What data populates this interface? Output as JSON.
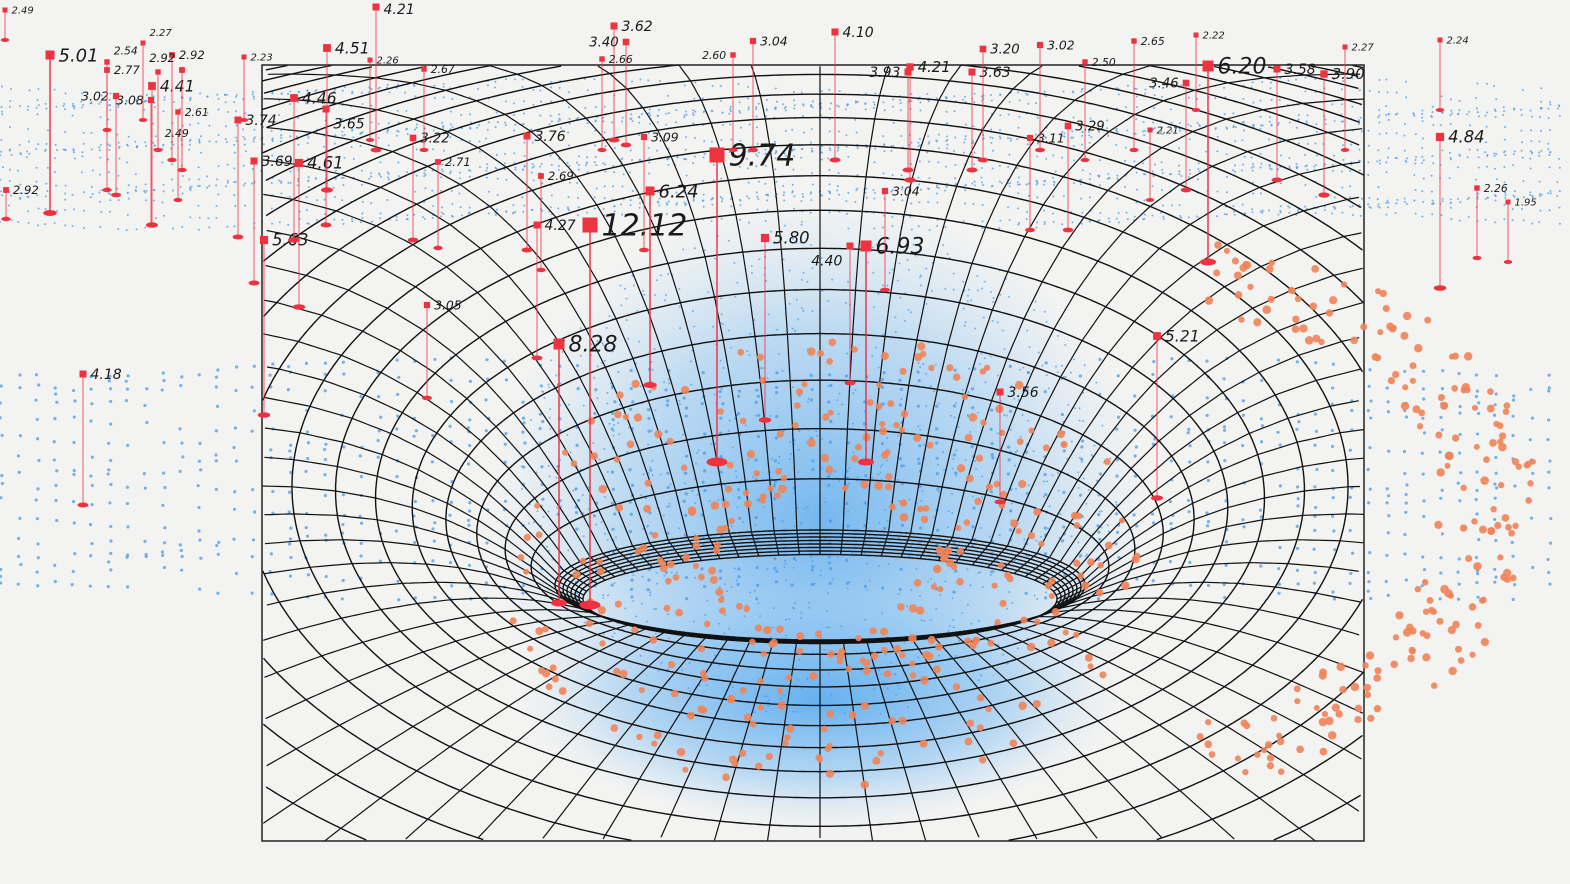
{
  "colors": {
    "background": "#f3f3f2",
    "grid": "#111111",
    "marker": "#ee3340",
    "blue_points": "#4a9be8",
    "orange_points": "#f08458",
    "glow": "#6bb4f0"
  },
  "markers": [
    {
      "value": "12.12"
    },
    {
      "value": "9.74"
    },
    {
      "value": "8.28"
    },
    {
      "value": "6.93"
    },
    {
      "value": "6.24"
    },
    {
      "value": "6.20"
    },
    {
      "value": "5.80"
    },
    {
      "value": "5.63"
    },
    {
      "value": "5.21"
    },
    {
      "value": "5.01"
    },
    {
      "value": "4.84"
    },
    {
      "value": "4.61"
    },
    {
      "value": "4.51"
    },
    {
      "value": "4.46"
    },
    {
      "value": "4.41"
    },
    {
      "value": "4.40"
    },
    {
      "value": "4.27"
    },
    {
      "value": "4.21"
    },
    {
      "value": "4.21"
    },
    {
      "value": "4.18"
    },
    {
      "value": "4.10"
    },
    {
      "value": "3.93"
    },
    {
      "value": "3.90"
    },
    {
      "value": "3.76"
    },
    {
      "value": "3.74"
    },
    {
      "value": "3.69"
    },
    {
      "value": "3.65"
    },
    {
      "value": "3.63"
    },
    {
      "value": "3.62"
    },
    {
      "value": "3.58"
    },
    {
      "value": "3.56"
    },
    {
      "value": "3.46"
    },
    {
      "value": "3.40"
    },
    {
      "value": "3.29"
    },
    {
      "value": "3.22"
    },
    {
      "value": "3.20"
    },
    {
      "value": "3.11"
    },
    {
      "value": "3.09"
    },
    {
      "value": "3.08"
    },
    {
      "value": "3.05"
    },
    {
      "value": "3.04"
    },
    {
      "value": "3.04"
    },
    {
      "value": "3.02"
    },
    {
      "value": "3.02"
    },
    {
      "value": "2.92"
    },
    {
      "value": "2.92"
    },
    {
      "value": "2.92"
    },
    {
      "value": "2.77"
    },
    {
      "value": "2.71"
    },
    {
      "value": "2.69"
    },
    {
      "value": "2.67"
    },
    {
      "value": "2.66"
    },
    {
      "value": "2.65"
    },
    {
      "value": "2.61"
    },
    {
      "value": "2.60"
    },
    {
      "value": "2.54"
    },
    {
      "value": "2.50"
    },
    {
      "value": "2.49"
    },
    {
      "value": "2.49"
    },
    {
      "value": "2.27"
    },
    {
      "value": "2.27"
    },
    {
      "value": "2.26"
    },
    {
      "value": "2.26"
    },
    {
      "value": "2.24"
    },
    {
      "value": "2.23"
    },
    {
      "value": "2.22"
    },
    {
      "value": "2.21"
    },
    {
      "value": "1.95"
    }
  ]
}
